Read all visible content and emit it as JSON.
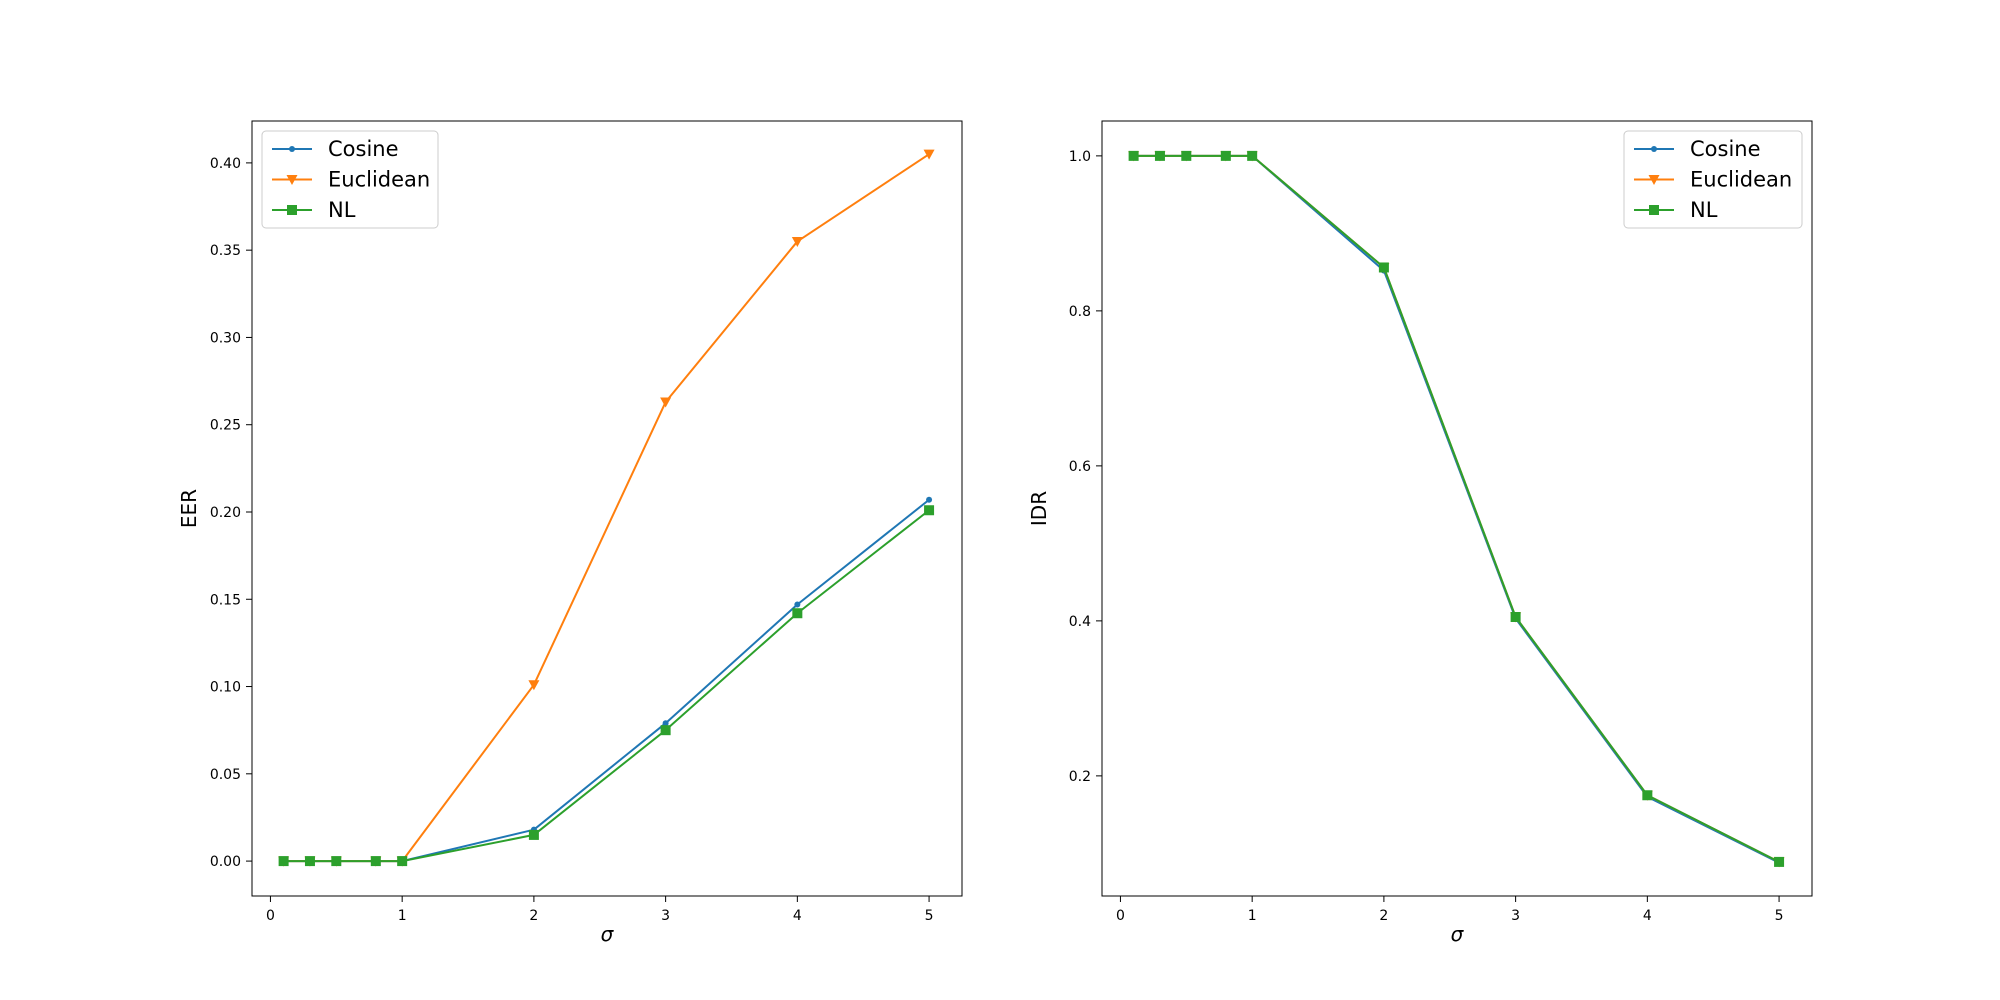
{
  "chart_data": [
    {
      "type": "line",
      "xlabel": "σ",
      "ylabel": "EER",
      "xlim": [
        -0.14,
        5.25
      ],
      "ylim": [
        -0.02,
        0.424
      ],
      "xticks": [
        0,
        1,
        2,
        3,
        4,
        5
      ],
      "xtick_labels": [
        "0",
        "1",
        "2",
        "3",
        "4",
        "5"
      ],
      "yticks": [
        0.0,
        0.05,
        0.1,
        0.15,
        0.2,
        0.25,
        0.3,
        0.35,
        0.4
      ],
      "ytick_labels": [
        "0.00",
        "0.05",
        "0.10",
        "0.15",
        "0.20",
        "0.25",
        "0.30",
        "0.35",
        "0.40"
      ],
      "legend_position": "upper-left",
      "grid": false,
      "x": [
        0.1,
        0.3,
        0.5,
        0.8,
        1,
        2,
        3,
        4,
        5
      ],
      "series": [
        {
          "name": "Cosine",
          "color": "#1f77b4",
          "marker": "point",
          "values": [
            0,
            0,
            0,
            0,
            0,
            0.018,
            0.079,
            0.147,
            0.207
          ]
        },
        {
          "name": "Euclidean",
          "color": "#ff7f0e",
          "marker": "triangle-down",
          "values": [
            0,
            0,
            0,
            0,
            0,
            0.101,
            0.263,
            0.355,
            0.405
          ]
        },
        {
          "name": "NL",
          "color": "#2ca02c",
          "marker": "square",
          "values": [
            0,
            0,
            0,
            0,
            0,
            0.015,
            0.075,
            0.142,
            0.201
          ]
        }
      ]
    },
    {
      "type": "line",
      "xlabel": "σ",
      "ylabel": "IDR",
      "xlim": [
        -0.14,
        5.25
      ],
      "ylim": [
        0.045,
        1.045
      ],
      "xticks": [
        0,
        1,
        2,
        3,
        4,
        5
      ],
      "xtick_labels": [
        "0",
        "1",
        "2",
        "3",
        "4",
        "5"
      ],
      "yticks": [
        0.2,
        0.4,
        0.6,
        0.8,
        1.0
      ],
      "ytick_labels": [
        "0.2",
        "0.4",
        "0.6",
        "0.8",
        "1.0"
      ],
      "legend_position": "upper-right",
      "grid": false,
      "x": [
        0.1,
        0.3,
        0.5,
        0.8,
        1,
        2,
        3,
        4,
        5
      ],
      "series": [
        {
          "name": "Cosine",
          "color": "#1f77b4",
          "marker": "point",
          "values": [
            1,
            1,
            1,
            1,
            1,
            0.852,
            0.403,
            0.173,
            0.088
          ]
        },
        {
          "name": "Euclidean",
          "color": "#ff7f0e",
          "marker": "triangle-down",
          "values": [
            1,
            1,
            1,
            1,
            1,
            0.856,
            0.405,
            0.175,
            0.089
          ]
        },
        {
          "name": "NL",
          "color": "#2ca02c",
          "marker": "square",
          "values": [
            1,
            1,
            1,
            1,
            1,
            0.856,
            0.405,
            0.175,
            0.089
          ]
        }
      ]
    }
  ]
}
